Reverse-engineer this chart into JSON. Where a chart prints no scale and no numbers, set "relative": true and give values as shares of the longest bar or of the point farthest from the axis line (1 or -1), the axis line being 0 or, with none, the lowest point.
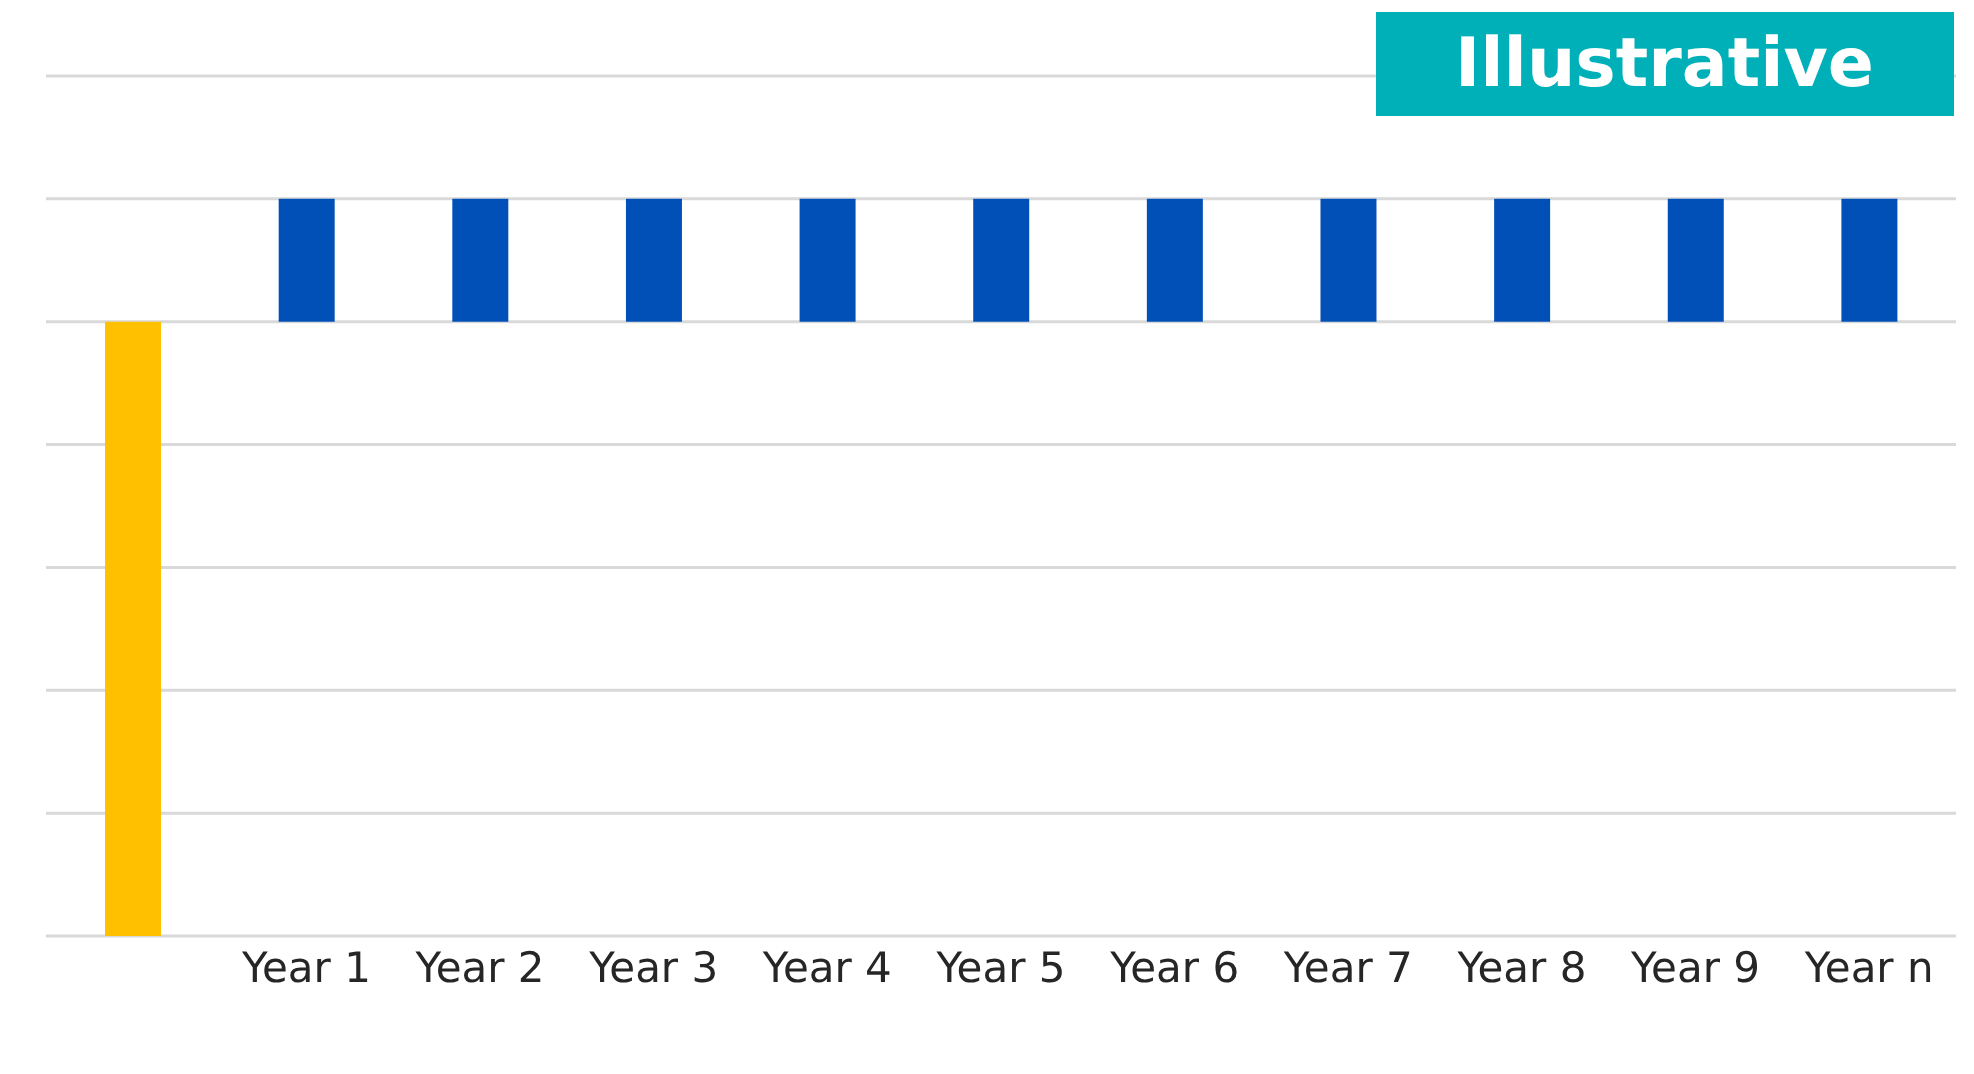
{
  "chart_data": {
    "type": "bar",
    "relative": true,
    "categories": [
      null,
      "Year 1",
      "Year 2",
      "Year 3",
      "Year 4",
      "Year 5",
      "Year 6",
      "Year 7",
      "Year 8",
      "Year 9",
      "Year n"
    ],
    "values": [
      -1,
      0.2,
      0.2,
      0.2,
      0.2,
      0.2,
      0.2,
      0.2,
      0.2,
      0.2,
      0.2
    ],
    "colors": [
      "#ffc000",
      "#0050b8",
      "#0050b8",
      "#0050b8",
      "#0050b8",
      "#0050b8",
      "#0050b8",
      "#0050b8",
      "#0050b8",
      "#0050b8",
      "#0050b8"
    ],
    "grid": "y",
    "annotations": [
      "Illustrative"
    ]
  }
}
